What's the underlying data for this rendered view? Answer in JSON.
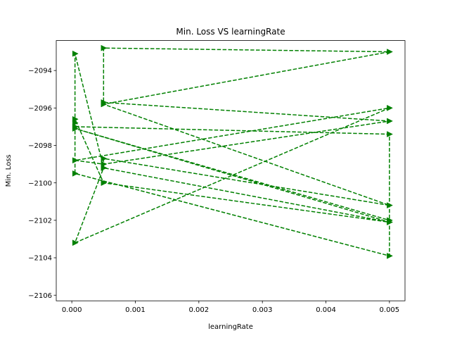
{
  "chart_data": {
    "type": "line",
    "title": "Min. Loss VS learningRate",
    "xlabel": "learningRate",
    "ylabel": "Min. Loss",
    "xlim": [
      -0.000245,
      0.005245
    ],
    "ylim": [
      -2106.3,
      -2092.4
    ],
    "xticks": [
      0.0,
      0.001,
      0.002,
      0.003,
      0.004,
      0.005
    ],
    "xtick_labels": [
      "0.000",
      "0.001",
      "0.002",
      "0.003",
      "0.004",
      "0.005"
    ],
    "yticks": [
      -2106,
      -2104,
      -2102,
      -2100,
      -2098,
      -2096,
      -2094
    ],
    "ytick_labels": [
      "−2106",
      "−2104",
      "−2102",
      "−2100",
      "−2098",
      "−2096",
      "−2094"
    ],
    "grid": false,
    "legend": "none",
    "series": [
      {
        "color": "#008000",
        "linestyle": "dashed",
        "marker": "triangle-right",
        "x": [
          5e-05,
          5e-05,
          0.0005,
          5e-05,
          0.005,
          5e-05,
          0.0005,
          0.005,
          0.0005,
          0.0005,
          0.005,
          0.0005,
          0.005,
          0.0005,
          0.0005,
          0.005,
          0.005,
          5e-05,
          0.005,
          0.0005,
          5e-05,
          5e-05,
          0.005,
          0.005,
          5e-05
        ],
        "y": [
          -2096.8,
          -2093.1,
          -2099.2,
          -2103.2,
          -2096.0,
          -2098.8,
          -2099.0,
          -2096.7,
          -2095.7,
          -2092.8,
          -2093.0,
          -2095.8,
          -2101.2,
          -2098.7,
          -2099.2,
          -2102.1,
          -2102.0,
          -2097.1,
          -2102.1,
          -2100.0,
          -2096.6,
          -2099.5,
          -2103.9,
          -2097.4,
          -2097.0
        ]
      }
    ]
  }
}
